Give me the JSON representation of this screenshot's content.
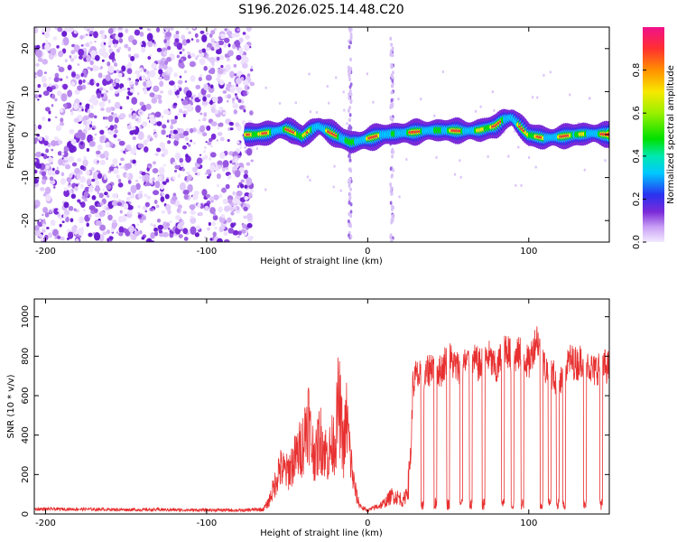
{
  "figure": {
    "title": "S196.2026.025.14.48.C20"
  },
  "chart_data": [
    {
      "type": "heatmap",
      "xlabel": "Height of straight line (km)",
      "ylabel": "Frequency (Hz)",
      "xlim": [
        -207,
        150
      ],
      "ylim": [
        -25,
        25
      ],
      "xticks": [
        -200,
        -100,
        0,
        100
      ],
      "yticks": [
        -20,
        -10,
        0,
        10,
        20
      ],
      "noise_region": [
        -207,
        -75
      ],
      "artifact_columns": [
        -11,
        15
      ],
      "ridge": [
        [
          -75,
          0
        ],
        [
          -70,
          0
        ],
        [
          -65,
          0.2
        ],
        [
          -60,
          0.5
        ],
        [
          -55,
          1
        ],
        [
          -50,
          1.3
        ],
        [
          -45,
          0.5
        ],
        [
          -40,
          -0.5
        ],
        [
          -35,
          1
        ],
        [
          -30,
          2
        ],
        [
          -25,
          1
        ],
        [
          -20,
          0
        ],
        [
          -15,
          -1
        ],
        [
          -10,
          -1.8
        ],
        [
          -5,
          -1.5
        ],
        [
          0,
          -1
        ],
        [
          5,
          -0.5
        ],
        [
          10,
          0
        ],
        [
          20,
          0.3
        ],
        [
          30,
          0.6
        ],
        [
          40,
          1
        ],
        [
          50,
          1
        ],
        [
          60,
          0.8
        ],
        [
          70,
          1
        ],
        [
          80,
          2
        ],
        [
          85,
          3.5
        ],
        [
          90,
          4
        ],
        [
          95,
          2
        ],
        [
          100,
          0
        ],
        [
          110,
          -0.8
        ],
        [
          120,
          -0.5
        ],
        [
          130,
          0
        ],
        [
          140,
          0.3
        ],
        [
          150,
          0
        ]
      ],
      "colorbar": {
        "label": "Normalized spectral amplitude",
        "range": [
          0,
          1
        ],
        "ticks": [
          0,
          0.2,
          0.4,
          0.6,
          0.8
        ],
        "tick_labels": [
          "0.0",
          "0.2",
          "0.4",
          "0.6",
          "0.8"
        ]
      }
    },
    {
      "type": "line",
      "xlabel": "Height of straight line (km)",
      "ylabel": "SNR (10 * v/v)",
      "xlim": [
        -207,
        150
      ],
      "ylim": [
        0,
        1090
      ],
      "xticks": [
        -200,
        -100,
        0,
        100
      ],
      "yticks": [
        0,
        200,
        400,
        600,
        800,
        1000
      ],
      "color": "#e83030",
      "series": [
        {
          "name": "SNR",
          "x": [
            -207,
            -190,
            -170,
            -150,
            -130,
            -110,
            -90,
            -75,
            -65,
            -62,
            -58,
            -55,
            -50,
            -45,
            -40,
            -37,
            -35,
            -32,
            -30,
            -25,
            -20,
            -18,
            -15,
            -13,
            -11,
            -9,
            -7,
            -5,
            -3,
            0,
            5,
            10,
            15,
            20,
            22,
            25,
            27,
            28,
            30,
            35,
            40,
            45,
            50,
            55,
            60,
            65,
            70,
            75,
            80,
            85,
            90,
            95,
            100,
            105,
            110,
            115,
            120,
            125,
            130,
            135,
            140,
            145,
            150
          ],
          "y": [
            25,
            25,
            24,
            22,
            22,
            20,
            20,
            18,
            20,
            45,
            120,
            200,
            180,
            240,
            310,
            440,
            300,
            250,
            340,
            250,
            330,
            500,
            280,
            420,
            260,
            150,
            80,
            40,
            25,
            15,
            30,
            45,
            80,
            70,
            50,
            120,
            350,
            650,
            700,
            680,
            760,
            720,
            800,
            740,
            760,
            780,
            750,
            800,
            720,
            860,
            780,
            820,
            760,
            900,
            740,
            700,
            660,
            780,
            760,
            800,
            720,
            760,
            740
          ]
        }
      ],
      "dips": [
        34,
        42,
        50,
        58,
        64,
        72,
        84,
        90,
        96,
        108,
        113,
        118,
        122,
        135,
        145
      ]
    }
  ]
}
